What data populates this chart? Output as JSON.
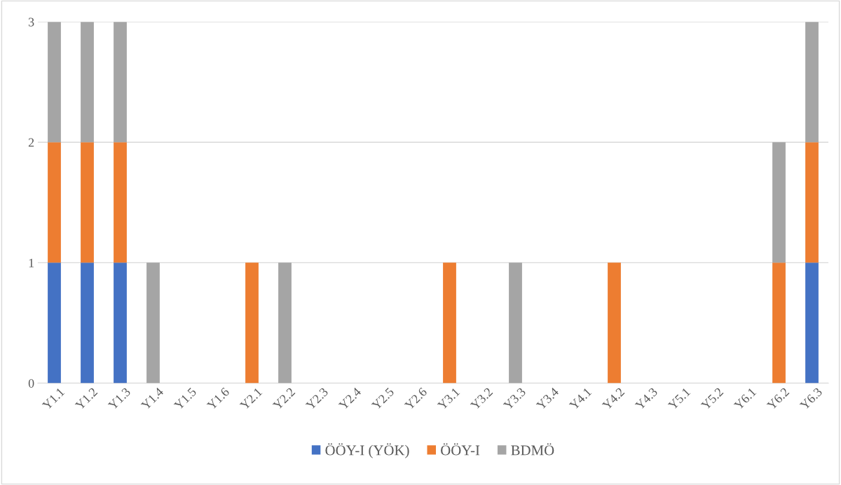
{
  "chart_data": {
    "type": "bar",
    "stacked": true,
    "categories": [
      "Y1.1",
      "Y1.2",
      "Y1.3",
      "Y1.4",
      "Y1.5",
      "Y1.6",
      "Y2.1",
      "Y2.2",
      "Y2.3",
      "Y2.4",
      "Y2.5",
      "Y2.6",
      "Y3.1",
      "Y3.2",
      "Y3.3",
      "Y3.4",
      "Y4.1",
      "Y4.2",
      "Y4.3",
      "Y5.1",
      "Y5.2",
      "Y6.1",
      "Y6.2",
      "Y6.3"
    ],
    "series": [
      {
        "name": "ÖÖY-I (YÖK)",
        "color": "#4472c4",
        "values": [
          1,
          1,
          1,
          0,
          0,
          0,
          0,
          0,
          0,
          0,
          0,
          0,
          0,
          0,
          0,
          0,
          0,
          0,
          0,
          0,
          0,
          0,
          0,
          1
        ]
      },
      {
        "name": "ÖÖY-I",
        "color": "#ed7d31",
        "values": [
          1,
          1,
          1,
          0,
          0,
          0,
          1,
          0,
          0,
          0,
          0,
          0,
          1,
          0,
          0,
          0,
          0,
          1,
          0,
          0,
          0,
          0,
          1,
          1
        ]
      },
      {
        "name": "BDMÖ",
        "color": "#a5a5a5",
        "values": [
          1,
          1,
          1,
          1,
          0,
          0,
          0,
          1,
          0,
          0,
          0,
          0,
          0,
          0,
          1,
          0,
          0,
          0,
          0,
          0,
          0,
          0,
          1,
          1
        ]
      }
    ],
    "ylim": [
      0,
      3
    ],
    "yticks": [
      0,
      1,
      2,
      3
    ],
    "grid": "y",
    "legend": "bottom"
  }
}
